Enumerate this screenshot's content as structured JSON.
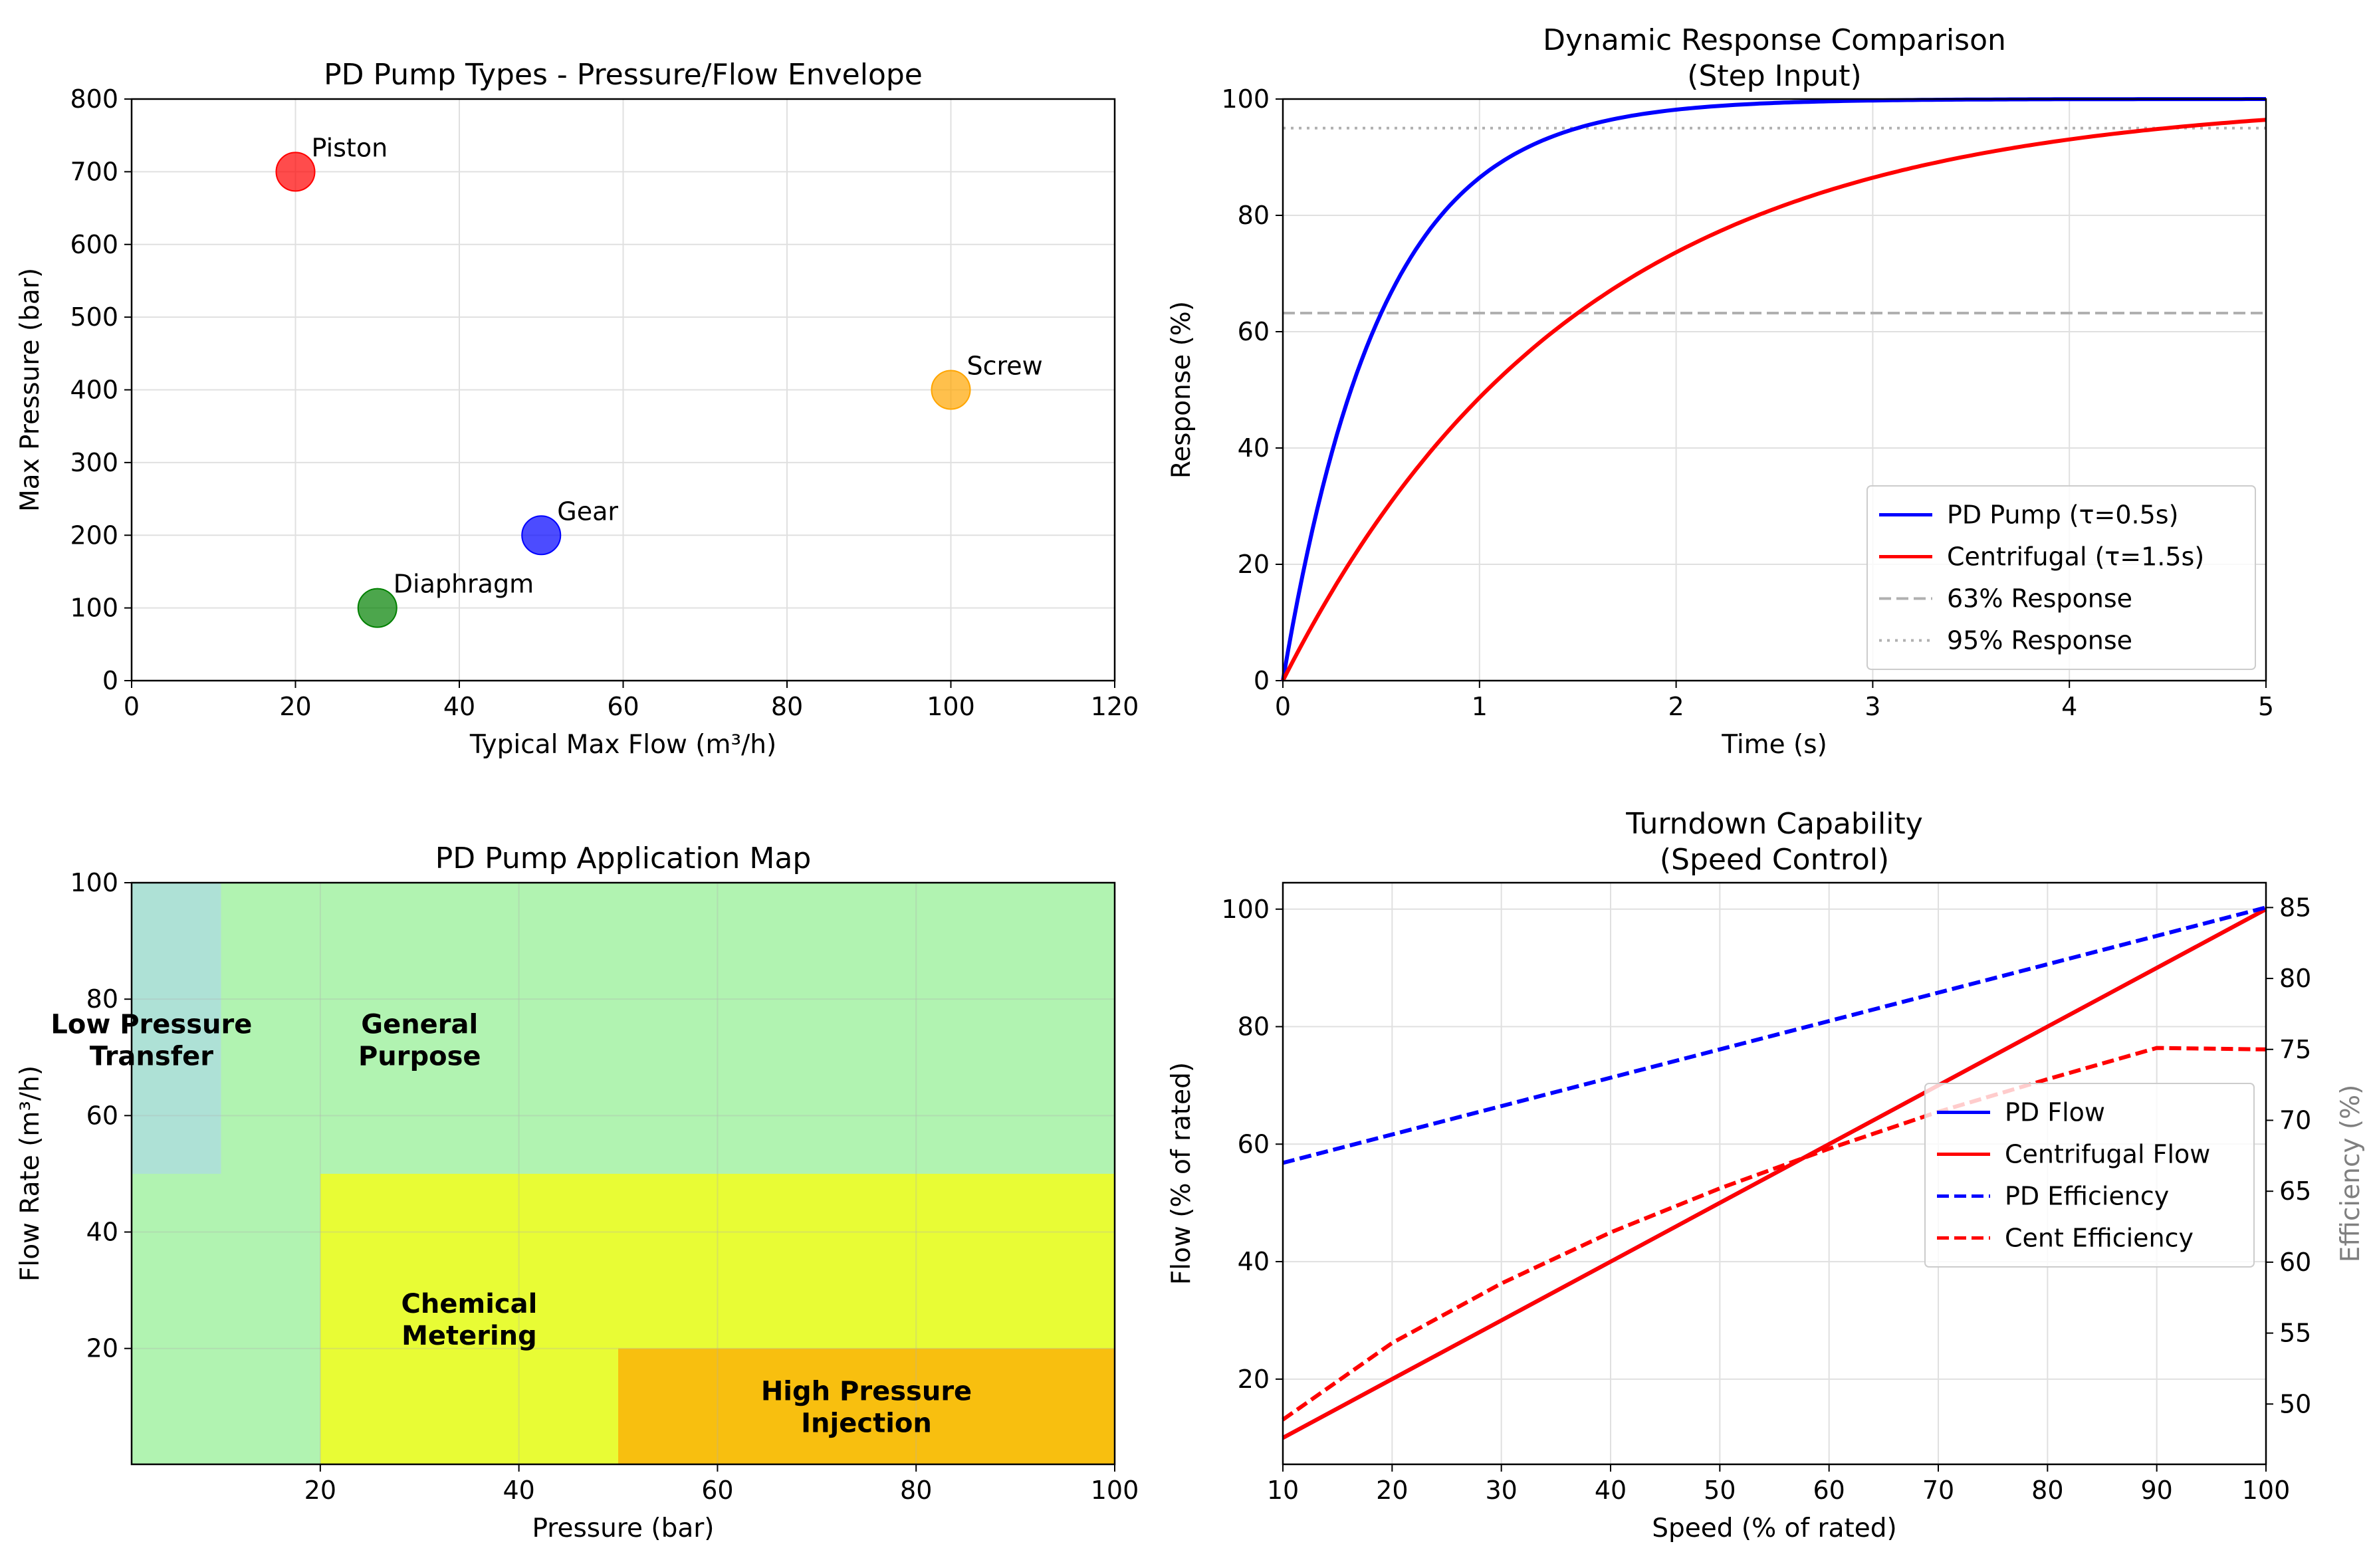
{
  "chart_data": [
    {
      "id": "envelope",
      "type": "scatter",
      "title": "PD Pump Types - Pressure/Flow Envelope",
      "xlabel": "Typical Max Flow (m³/h)",
      "ylabel": "Max Pressure (bar)",
      "xlim": [
        0,
        120
      ],
      "ylim": [
        0,
        800
      ],
      "xticks": [
        0,
        20,
        40,
        60,
        80,
        100,
        120
      ],
      "yticks": [
        0,
        100,
        200,
        300,
        400,
        500,
        600,
        700,
        800
      ],
      "grid": true,
      "points": [
        {
          "label": "Piston",
          "x": 20,
          "y": 700,
          "color": "#ff0000"
        },
        {
          "label": "Screw",
          "x": 100,
          "y": 400,
          "color": "#ffa500"
        },
        {
          "label": "Gear",
          "x": 50,
          "y": 200,
          "color": "#0000ff"
        },
        {
          "label": "Diaphragm",
          "x": 30,
          "y": 100,
          "color": "#008000"
        }
      ]
    },
    {
      "id": "dynamic",
      "type": "line",
      "title": "Dynamic Response Comparison",
      "subtitle": "(Step Input)",
      "xlabel": "Time (s)",
      "ylabel": "Response (%)",
      "xlim": [
        0,
        5
      ],
      "ylim": [
        0,
        100
      ],
      "xticks": [
        0,
        1,
        2,
        3,
        4,
        5
      ],
      "yticks": [
        0,
        20,
        40,
        60,
        80,
        100
      ],
      "grid": true,
      "legend_position": "lower right",
      "series": [
        {
          "name": "PD Pump (τ=0.5s)",
          "tau": 0.5,
          "color": "#0000ff",
          "style": "solid"
        },
        {
          "name": "Centrifugal (τ=1.5s)",
          "tau": 1.5,
          "color": "#ff0000",
          "style": "solid"
        }
      ],
      "reference_lines": [
        {
          "name": "63% Response",
          "y": 63.2,
          "color": "#b0b0b0",
          "style": "dashed"
        },
        {
          "name": "95% Response",
          "y": 95,
          "color": "#b0b0b0",
          "style": "dotted"
        }
      ]
    },
    {
      "id": "appmap",
      "type": "area",
      "title": "PD Pump Application Map",
      "xlabel": "Pressure (bar)",
      "ylabel": "Flow Rate (m³/h)",
      "xlim": [
        1,
        100
      ],
      "ylim": [
        0.1,
        100
      ],
      "xticks": [
        20,
        40,
        60,
        80,
        100
      ],
      "yticks": [
        20,
        40,
        60,
        80,
        100
      ],
      "grid": true,
      "regions": [
        {
          "label": "General\nPurpose",
          "x": [
            1,
            100
          ],
          "y": [
            0.1,
            100
          ],
          "color": "#90ee90",
          "alpha": 0.7,
          "text_x": 30,
          "text_y": 73
        },
        {
          "label": "Low Pressure\nTransfer",
          "x": [
            1,
            10
          ],
          "y": [
            50,
            100
          ],
          "color": "#add8e6",
          "alpha": 0.7,
          "text_x": 3,
          "text_y": 73
        },
        {
          "label": "Chemical\nMetering",
          "x": [
            20,
            100
          ],
          "y": [
            0.1,
            50
          ],
          "color": "#ffff00",
          "alpha": 0.7,
          "text_x": 35,
          "text_y": 25
        },
        {
          "label": "High Pressure\nInjection",
          "x": [
            50,
            100
          ],
          "y": [
            0.1,
            20
          ],
          "color": "#ffa500",
          "alpha": 0.7,
          "text_x": 75,
          "text_y": 10
        }
      ]
    },
    {
      "id": "turndown",
      "type": "line",
      "title": "Turndown Capability",
      "subtitle": "(Speed Control)",
      "xlabel": "Speed (% of rated)",
      "ylabel": "Flow (% of rated)",
      "y2label": "Efficiency (%)",
      "xlim": [
        10,
        100
      ],
      "ylim": [
        5.5,
        104.5
      ],
      "y2lim": [
        45.75,
        86.75
      ],
      "xticks": [
        10,
        20,
        30,
        40,
        50,
        60,
        70,
        80,
        90,
        100
      ],
      "yticks": [
        20,
        40,
        60,
        80,
        100
      ],
      "y2ticks": [
        50,
        55,
        60,
        65,
        70,
        75,
        80,
        85
      ],
      "grid": true,
      "legend_position": "center right",
      "speed": [
        10,
        20,
        30,
        40,
        50,
        60,
        70,
        80,
        90,
        100
      ],
      "series": [
        {
          "name": "PD Flow",
          "axis": "left",
          "color": "#0000ff",
          "style": "solid",
          "values": [
            10,
            20,
            30,
            40,
            50,
            60,
            70,
            80,
            90,
            100
          ]
        },
        {
          "name": "Centrifugal Flow",
          "axis": "left",
          "color": "#ff0000",
          "style": "solid",
          "values": [
            10,
            20,
            30,
            40,
            50,
            60,
            70,
            80,
            90,
            100
          ]
        },
        {
          "name": "PD Efficiency",
          "axis": "right",
          "color": "#0000ff",
          "style": "dashed",
          "values": [
            67,
            69,
            71,
            73,
            75,
            77,
            79,
            81,
            83,
            85
          ]
        },
        {
          "name": "Cent Efficiency",
          "axis": "right",
          "color": "#ff0000",
          "style": "dashed",
          "values": [
            48.9,
            54.3,
            58.5,
            62.1,
            65.2,
            68.0,
            70.6,
            72.9,
            75.1,
            75.0
          ]
        }
      ]
    }
  ]
}
